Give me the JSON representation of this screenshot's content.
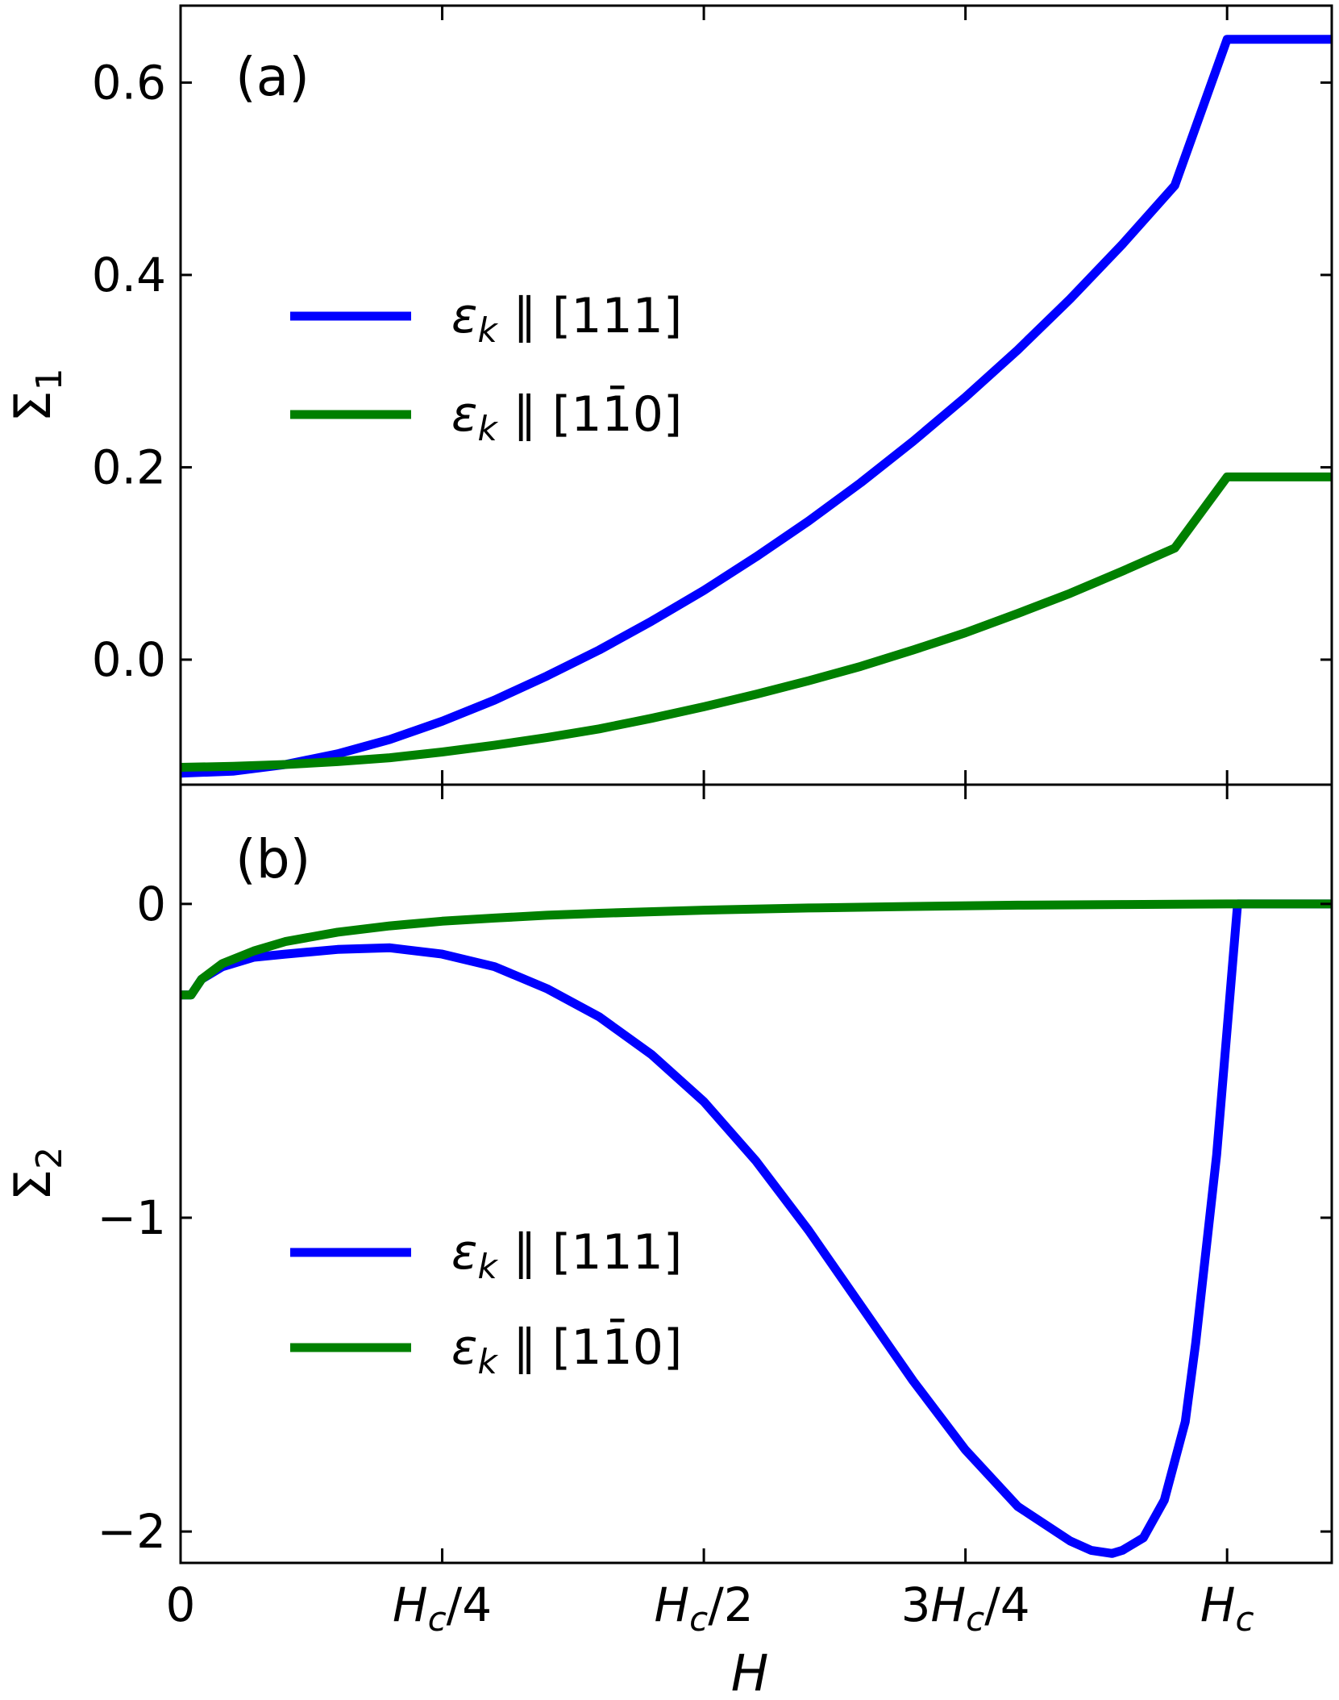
{
  "chart_data": [
    {
      "type": "line",
      "panel_label": "(a)",
      "ylabel": {
        "main": "Σ",
        "sub": "1"
      },
      "xlabel": "",
      "x_ticks": [
        {
          "value": 0,
          "label": "0"
        },
        {
          "value": 0.25,
          "label": "H_c/4"
        },
        {
          "value": 0.5,
          "label": "H_c/2"
        },
        {
          "value": 0.75,
          "label": "3H_c/4"
        },
        {
          "value": 1.0,
          "label": "H_c"
        }
      ],
      "xlim": [
        0,
        1.1
      ],
      "ylim": [
        -0.13,
        0.68
      ],
      "y_ticks": [
        {
          "value": 0.0,
          "label": "0.0"
        },
        {
          "value": 0.2,
          "label": "0.2"
        },
        {
          "value": 0.4,
          "label": "0.4"
        },
        {
          "value": 0.6,
          "label": "0.6"
        }
      ],
      "legend_position": "center-left",
      "legend": [
        {
          "series": 0,
          "parts": [
            "ε",
            "k",
            "∥ [111]"
          ]
        },
        {
          "series": 1,
          "parts": [
            "ε",
            "k",
            "∥ [1",
            "1̄",
            "0]"
          ]
        }
      ],
      "series": [
        {
          "color": "#0000ff",
          "x": [
            0,
            0.05,
            0.1,
            0.15,
            0.2,
            0.25,
            0.3,
            0.35,
            0.4,
            0.45,
            0.5,
            0.55,
            0.6,
            0.65,
            0.7,
            0.75,
            0.8,
            0.85,
            0.9,
            0.95,
            1.0,
            1.1
          ],
          "y": [
            -0.118,
            -0.116,
            -0.109,
            -0.098,
            -0.083,
            -0.064,
            -0.042,
            -0.017,
            0.01,
            0.04,
            0.072,
            0.107,
            0.144,
            0.184,
            0.227,
            0.273,
            0.322,
            0.375,
            0.432,
            0.493,
            0.645,
            0.645
          ]
        },
        {
          "color": "#008000",
          "x": [
            0,
            0.05,
            0.1,
            0.15,
            0.2,
            0.25,
            0.3,
            0.35,
            0.4,
            0.45,
            0.5,
            0.55,
            0.6,
            0.65,
            0.7,
            0.75,
            0.8,
            0.85,
            0.9,
            0.95,
            1.0,
            1.1
          ],
          "y": [
            -0.112,
            -0.111,
            -0.109,
            -0.106,
            -0.102,
            -0.096,
            -0.089,
            -0.081,
            -0.072,
            -0.061,
            -0.049,
            -0.036,
            -0.022,
            -0.007,
            0.01,
            0.028,
            0.048,
            0.069,
            0.092,
            0.116,
            0.19,
            0.19
          ]
        }
      ]
    },
    {
      "type": "line",
      "panel_label": "(b)",
      "ylabel": {
        "main": "Σ",
        "sub": "2"
      },
      "xlabel": "H",
      "xlim": [
        0,
        1.1
      ],
      "ylim": [
        -2.1,
        0.38
      ],
      "y_ticks": [
        {
          "value": -2,
          "label": "−2"
        },
        {
          "value": -1,
          "label": "−1"
        },
        {
          "value": 0,
          "label": "0"
        }
      ],
      "x_ticks": [
        {
          "value": 0,
          "label": "0"
        },
        {
          "value": 0.25,
          "label": "H_c/4"
        },
        {
          "value": 0.5,
          "label": "H_c/2"
        },
        {
          "value": 0.75,
          "label": "3H_c/4"
        },
        {
          "value": 1.0,
          "label": "H_c"
        }
      ],
      "legend_position": "lower-left",
      "legend": [
        {
          "series": 0,
          "parts": [
            "ε",
            "k",
            "∥ [111]"
          ]
        },
        {
          "series": 1,
          "parts": [
            "ε",
            "k",
            "∥ [1",
            "1̄",
            "0]"
          ]
        }
      ],
      "series": [
        {
          "color": "#0000ff",
          "x": [
            0,
            0.01,
            0.02,
            0.04,
            0.07,
            0.1,
            0.15,
            0.2,
            0.25,
            0.3,
            0.35,
            0.4,
            0.45,
            0.5,
            0.55,
            0.6,
            0.65,
            0.7,
            0.75,
            0.8,
            0.85,
            0.87,
            0.89,
            0.9,
            0.92,
            0.94,
            0.96,
            0.97,
            0.98,
            0.99,
            1.0,
            1.01,
            1.1
          ],
          "y": [
            -0.29,
            -0.29,
            -0.24,
            -0.2,
            -0.17,
            -0.16,
            -0.145,
            -0.14,
            -0.16,
            -0.2,
            -0.27,
            -0.36,
            -0.48,
            -0.63,
            -0.82,
            -1.04,
            -1.28,
            -1.52,
            -1.74,
            -1.92,
            -2.03,
            -2.06,
            -2.07,
            -2.06,
            -2.02,
            -1.9,
            -1.65,
            -1.4,
            -1.1,
            -0.8,
            -0.4,
            0.0,
            0.0
          ]
        },
        {
          "color": "#008000",
          "x": [
            0,
            0.01,
            0.02,
            0.04,
            0.07,
            0.1,
            0.15,
            0.2,
            0.25,
            0.3,
            0.35,
            0.4,
            0.5,
            0.6,
            0.7,
            0.8,
            0.9,
            1.0,
            1.1
          ],
          "y": [
            -0.29,
            -0.29,
            -0.24,
            -0.19,
            -0.15,
            -0.12,
            -0.09,
            -0.07,
            -0.055,
            -0.045,
            -0.036,
            -0.03,
            -0.02,
            -0.013,
            -0.008,
            -0.004,
            -0.002,
            0.0,
            0.0
          ]
        }
      ]
    }
  ]
}
